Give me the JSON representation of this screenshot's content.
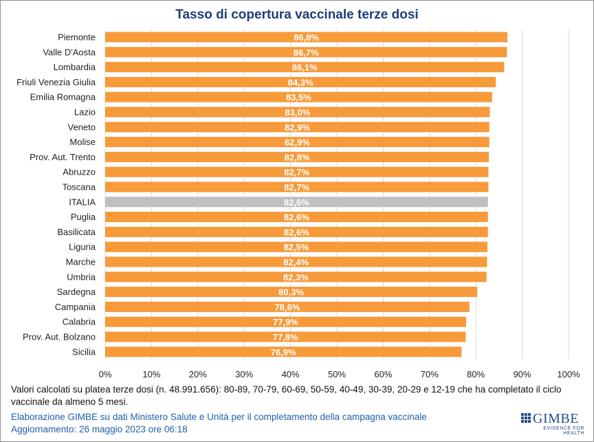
{
  "chart_data": {
    "type": "bar",
    "orientation": "horizontal",
    "title": "Tasso di copertura vaccinale terze dosi",
    "categories": [
      "Piemonte",
      "Valle D'Aosta",
      "Lombardia",
      "Friuli Venezia Giulia",
      "Emilia Romagna",
      "Lazio",
      "Veneto",
      "Molise",
      "Prov. Aut. Trento",
      "Abruzzo",
      "Toscana",
      "ITALIA",
      "Puglia",
      "Basilicata",
      "Liguria",
      "Marche",
      "Umbria",
      "Sardegna",
      "Campania",
      "Calabria",
      "Prov. Aut. Bolzano",
      "Sicilia"
    ],
    "values": [
      86.8,
      86.7,
      86.1,
      84.3,
      83.5,
      83.0,
      82.9,
      82.9,
      82.8,
      82.7,
      82.7,
      82.6,
      82.6,
      82.6,
      82.5,
      82.4,
      82.3,
      80.3,
      78.6,
      77.9,
      77.8,
      76.9
    ],
    "data_labels": [
      "86,8%",
      "86,7%",
      "86,1%",
      "84,3%",
      "83,5%",
      "83,0%",
      "82,9%",
      "82,9%",
      "82,8%",
      "82,7%",
      "82,7%",
      "82,6%",
      "82,6%",
      "82,6%",
      "82,5%",
      "82,4%",
      "82,3%",
      "80,3%",
      "78,6%",
      "77,9%",
      "77,8%",
      "76,9%"
    ],
    "highlight_category": "ITALIA",
    "xlim": [
      0,
      100
    ],
    "xticks": [
      "0%",
      "10%",
      "20%",
      "30%",
      "40%",
      "50%",
      "60%",
      "70%",
      "80%",
      "90%",
      "100%"
    ],
    "grid": "vertical",
    "colors": {
      "bar": "#f79a3a",
      "highlight": "#bfbfbf",
      "grid": "#d9d9d9",
      "label": "#ffffff"
    }
  },
  "footer": {
    "note": "Valori calcolati su platea terze dosi (n. 48.991.656): 80-89, 70-79, 60-69, 50-59, 40-49, 30-39, 20-29 e 12-19 che ha completato il ciclo vaccinale da almeno 5 mesi.",
    "source": "Elaborazione GIMBE su dati Ministero Salute e Unità per il completamento della campagna vaccinale",
    "updated": "Aggiornamento: 26 maggio 2023 ore 06:18"
  },
  "logo": {
    "name": "GIMBE",
    "tagline": "EVIDENCE FOR HEALTH"
  }
}
